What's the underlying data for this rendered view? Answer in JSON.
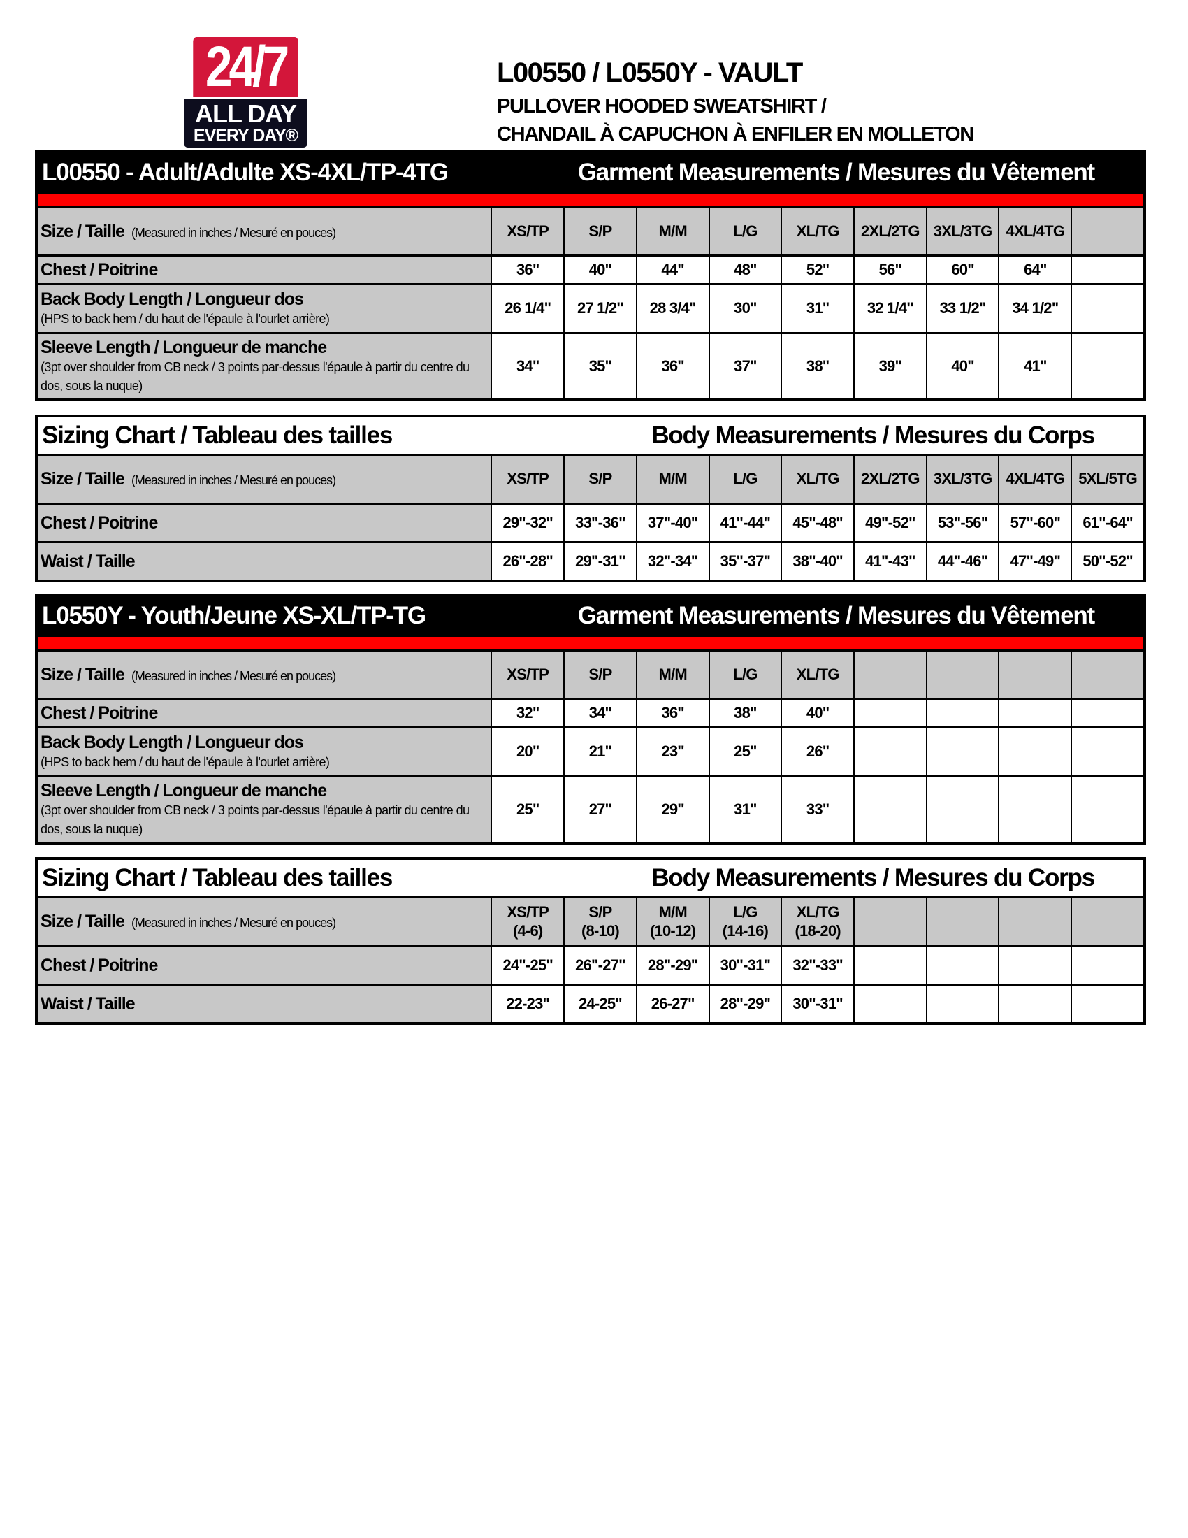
{
  "logo": {
    "line1": "24/7",
    "line2": "ALL DAY",
    "line3": "EVERY DAY®",
    "colors": {
      "red": "#d3163a",
      "navy": "#0d0d1e"
    }
  },
  "header": {
    "title": "L00550 / L0550Y - VAULT",
    "subtitle_en": "PULLOVER HOODED SWEATSHIRT /",
    "subtitle_fr": "CHANDAIL À CAPUCHON À ENFILER EN MOLLETON"
  },
  "colors": {
    "header_band": "#000000",
    "accent_band": "#ff0000",
    "label_fill": "#c8c8c8"
  },
  "tables": [
    {
      "kind": "garment",
      "title_left": "L00550 - Adult/Adulte XS-4XL/TP-4TG",
      "title_right": "Garment Measurements / Mesures du Vêtement",
      "size_label": "Size / Taille",
      "size_note": "(Measured in inches / Mesuré en pouces)",
      "sizes": [
        "XS/TP",
        "S/P",
        "M/M",
        "L/G",
        "XL/TG",
        "2XL/2TG",
        "3XL/3TG",
        "4XL/4TG"
      ],
      "rows": [
        {
          "label": "Chest / Poitrine",
          "values": [
            "36\"",
            "40\"",
            "44\"",
            "48\"",
            "52\"",
            "56\"",
            "60\"",
            "64\""
          ]
        },
        {
          "label": "Back Body Length / Longueur dos",
          "note": "(HPS to back hem  / du haut de l'épaule à l'ourlet arrière)",
          "values": [
            "26 1/4\"",
            "27 1/2\"",
            "28 3/4\"",
            "30\"",
            "31\"",
            "32 1/4\"",
            "33 1/2\"",
            "34 1/2\""
          ]
        },
        {
          "label": "Sleeve Length / Longueur de manche",
          "note": "(3pt over shoulder from CB neck / 3 points par-dessus l'épaule à partir du centre du dos, sous la nuque)",
          "values": [
            "34\"",
            "35\"",
            "36\"",
            "37\"",
            "38\"",
            "39\"",
            "40\"",
            "41\""
          ]
        }
      ]
    },
    {
      "kind": "body",
      "title_left": "Sizing Chart / Tableau des tailles",
      "title_right": "Body Measurements / Mesures du Corps",
      "size_label": "Size / Taille",
      "size_note": "(Measured in inches / Mesuré en pouces)",
      "sizes": [
        "XS/TP",
        "S/P",
        "M/M",
        "L/G",
        "XL/TG",
        "2XL/2TG",
        "3XL/3TG",
        "4XL/4TG",
        "5XL/5TG"
      ],
      "rows": [
        {
          "label": "Chest / Poitrine",
          "values": [
            "29\"-32\"",
            "33\"-36\"",
            "37\"-40\"",
            "41\"-44\"",
            "45\"-48\"",
            "49\"-52\"",
            "53\"-56\"",
            "57\"-60\"",
            "61\"-64\""
          ]
        },
        {
          "label": "Waist / Taille",
          "values": [
            "26\"-28\"",
            "29\"-31\"",
            "32\"-34\"",
            "35\"-37\"",
            "38\"-40\"",
            "41\"-43\"",
            "44\"-46\"",
            "47\"-49\"",
            "50\"-52\""
          ]
        }
      ]
    },
    {
      "kind": "garment",
      "title_left": "L0550Y - Youth/Jeune XS-XL/TP-TG",
      "title_right": "Garment Measurements / Mesures du Vêtement",
      "size_label": "Size / Taille",
      "size_note": "(Measured in inches / Mesuré en pouces)",
      "sizes": [
        "XS/TP",
        "S/P",
        "M/M",
        "L/G",
        "XL/TG"
      ],
      "rows": [
        {
          "label": "Chest / Poitrine",
          "values": [
            "32\"",
            "34\"",
            "36\"",
            "38\"",
            "40\""
          ]
        },
        {
          "label": "Back Body Length / Longueur dos",
          "note": "(HPS to back hem  / du haut de l'épaule à l'ourlet arrière)",
          "values": [
            "20\"",
            "21\"",
            "23\"",
            "25\"",
            "26\""
          ]
        },
        {
          "label": "Sleeve Length / Longueur de manche",
          "note": "(3pt over shoulder from CB neck / 3 points par-dessus l'épaule à partir du centre du dos, sous la nuque)",
          "values": [
            "25\"",
            "27\"",
            "29\"",
            "31\"",
            "33\""
          ]
        }
      ]
    },
    {
      "kind": "body",
      "title_left": "Sizing Chart / Tableau des tailles",
      "title_right": "Body Measurements / Mesures du Corps",
      "size_label": "Size / Taille",
      "size_note": "(Measured in inches / Mesuré en pouces)",
      "sizes": [
        "XS/TP",
        "S/P",
        "M/M",
        "L/G",
        "XL/TG"
      ],
      "size_ranges": [
        "(4-6)",
        "(8-10)",
        "(10-12)",
        "(14-16)",
        "(18-20)"
      ],
      "rows": [
        {
          "label": "Chest / Poitrine",
          "values": [
            "24\"-25\"",
            "26\"-27\"",
            "28\"-29\"",
            "30\"-31\"",
            "32\"-33\""
          ]
        },
        {
          "label": "Waist / Taille",
          "values": [
            "22-23\"",
            "24-25\"",
            "26-27\"",
            "28\"-29\"",
            "30\"-31\""
          ]
        }
      ]
    }
  ]
}
